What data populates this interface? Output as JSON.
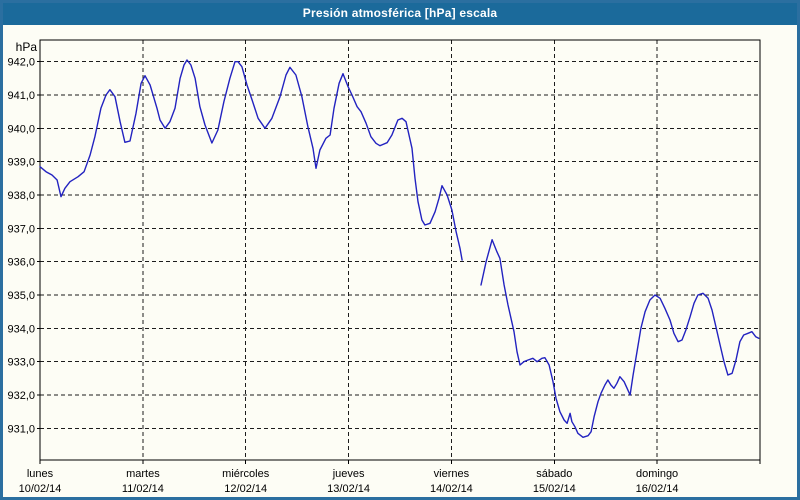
{
  "window": {
    "title": "Presión atmosférica [hPa] escala"
  },
  "colors": {
    "titlebar_bg": "#1b6a9b",
    "titlebar_text": "#ffffff",
    "window_border": "#2b6fa0",
    "content_bg": "#fdfdf5",
    "axis": "#000000",
    "grid": "#1c1c1c",
    "label_text": "#000000",
    "line": "#2323c0"
  },
  "chart_data": {
    "type": "line",
    "title": "Presión atmosférica [hPa] escala",
    "y_unit_label": "hPa",
    "y_ticks": [
      942,
      941,
      940,
      939,
      938,
      937,
      936,
      935,
      934,
      933,
      932,
      931
    ],
    "y_tick_labels": [
      "942,0",
      "941,0",
      "940,0",
      "939,0",
      "938,0",
      "937,0",
      "936,0",
      "935,0",
      "934,0",
      "933,0",
      "932,0",
      "931,0"
    ],
    "ylim": [
      930.05,
      942.65
    ],
    "x_range_hours": [
      0,
      168
    ],
    "grid": "dashed",
    "legend": "none",
    "x_days": [
      {
        "name": "lunes",
        "date": "10/02/14"
      },
      {
        "name": "martes",
        "date": "11/02/14"
      },
      {
        "name": "miércoles",
        "date": "12/02/14"
      },
      {
        "name": "jueves",
        "date": "13/02/14"
      },
      {
        "name": "viernes",
        "date": "14/02/14"
      },
      {
        "name": "sábado",
        "date": "15/02/14"
      },
      {
        "name": "domingo",
        "date": "16/02/14"
      }
    ],
    "series": [
      {
        "name": "presion_atmosferica_hPa",
        "color": "#2323c0",
        "segments": [
          [
            [
              0,
              938.85
            ],
            [
              1.4,
              938.7
            ],
            [
              2.8,
              938.6
            ],
            [
              4,
              938.45
            ],
            [
              4.9,
              937.95
            ],
            [
              5.8,
              938.2
            ],
            [
              7,
              938.4
            ],
            [
              8.9,
              938.55
            ],
            [
              10.3,
              938.7
            ],
            [
              11.7,
              939.2
            ],
            [
              12.8,
              939.75
            ],
            [
              14.2,
              940.6
            ],
            [
              15.4,
              941.0
            ],
            [
              16.3,
              941.16
            ],
            [
              17.5,
              940.95
            ],
            [
              18.7,
              940.2
            ],
            [
              19.8,
              939.58
            ],
            [
              21,
              939.62
            ],
            [
              22.4,
              940.45
            ],
            [
              23.6,
              941.35
            ],
            [
              24.5,
              941.58
            ],
            [
              25.7,
              941.3
            ],
            [
              27.3,
              940.6
            ],
            [
              28,
              940.25
            ],
            [
              29.2,
              940.0
            ],
            [
              30.3,
              940.2
            ],
            [
              31.5,
              940.6
            ],
            [
              32.7,
              941.5
            ],
            [
              33.6,
              941.9
            ],
            [
              34.3,
              942.05
            ],
            [
              35.2,
              941.9
            ],
            [
              36.2,
              941.5
            ],
            [
              37.3,
              940.65
            ],
            [
              38.5,
              940.1
            ],
            [
              40.1,
              939.56
            ],
            [
              41.5,
              939.95
            ],
            [
              42.9,
              940.8
            ],
            [
              44.3,
              941.5
            ],
            [
              45.5,
              942.0
            ],
            [
              46.2,
              942.0
            ],
            [
              47.1,
              941.85
            ],
            [
              48.3,
              941.3
            ],
            [
              49.5,
              940.85
            ],
            [
              50.9,
              940.3
            ],
            [
              52.5,
              940.0
            ],
            [
              54.1,
              940.3
            ],
            [
              56,
              940.95
            ],
            [
              57.4,
              941.6
            ],
            [
              58.3,
              941.83
            ],
            [
              59.7,
              941.6
            ],
            [
              61.1,
              940.95
            ],
            [
              62.5,
              940.05
            ],
            [
              63.7,
              939.4
            ],
            [
              64.4,
              938.8
            ],
            [
              65.3,
              939.35
            ],
            [
              66.7,
              939.7
            ],
            [
              67.7,
              939.8
            ],
            [
              68.6,
              940.6
            ],
            [
              69.8,
              941.35
            ],
            [
              70.7,
              941.64
            ],
            [
              71.9,
              941.25
            ],
            [
              72.8,
              941.0
            ],
            [
              74,
              940.65
            ],
            [
              74.9,
              940.5
            ],
            [
              76.1,
              940.15
            ],
            [
              77.2,
              939.75
            ],
            [
              78.4,
              939.55
            ],
            [
              79.3,
              939.48
            ],
            [
              81,
              939.57
            ],
            [
              82.1,
              939.8
            ],
            [
              83.5,
              940.25
            ],
            [
              84.5,
              940.3
            ],
            [
              85.4,
              940.2
            ],
            [
              86.8,
              939.4
            ],
            [
              87.5,
              938.5
            ],
            [
              88.2,
              937.8
            ],
            [
              89.1,
              937.25
            ],
            [
              89.8,
              937.1
            ],
            [
              91,
              937.15
            ],
            [
              92.2,
              937.5
            ],
            [
              93.1,
              937.9
            ],
            [
              93.8,
              938.28
            ],
            [
              95,
              938.0
            ],
            [
              96.1,
              937.55
            ],
            [
              97.1,
              936.9
            ],
            [
              98,
              936.4
            ],
            [
              98.5,
              936.05
            ]
          ],
          [
            [
              102.9,
              935.3
            ],
            [
              104.1,
              936.0
            ],
            [
              105.5,
              936.66
            ],
            [
              106.6,
              936.3
            ],
            [
              107.3,
              936.1
            ],
            [
              108.3,
              935.3
            ],
            [
              109.2,
              934.7
            ],
            [
              109.9,
              934.3
            ],
            [
              110.6,
              933.9
            ],
            [
              111.3,
              933.3
            ],
            [
              112,
              932.9
            ],
            [
              112.9,
              933.0
            ],
            [
              113.9,
              933.05
            ],
            [
              115,
              933.1
            ],
            [
              116,
              933.0
            ],
            [
              117.1,
              933.1
            ],
            [
              117.8,
              933.12
            ],
            [
              118.8,
              932.9
            ],
            [
              119.7,
              932.4
            ],
            [
              120.4,
              931.9
            ],
            [
              121.3,
              931.5
            ],
            [
              122.3,
              931.25
            ],
            [
              123,
              931.15
            ],
            [
              123.7,
              931.45
            ],
            [
              124.1,
              931.2
            ],
            [
              124.8,
              931.05
            ],
            [
              125.5,
              930.85
            ],
            [
              126.7,
              930.73
            ],
            [
              127.9,
              930.78
            ],
            [
              128.6,
              930.9
            ],
            [
              129.3,
              931.35
            ],
            [
              130.2,
              931.8
            ],
            [
              130.9,
              932.05
            ],
            [
              131.8,
              932.3
            ],
            [
              132.5,
              932.45
            ],
            [
              133.2,
              932.3
            ],
            [
              133.9,
              932.2
            ],
            [
              134.6,
              932.35
            ],
            [
              135.3,
              932.55
            ],
            [
              136.3,
              932.4
            ],
            [
              137,
              932.2
            ],
            [
              137.7,
              932.0
            ],
            [
              138.4,
              932.6
            ],
            [
              139.3,
              933.3
            ],
            [
              140.2,
              934.0
            ],
            [
              141.2,
              934.5
            ],
            [
              142.3,
              934.85
            ],
            [
              143.5,
              935.0
            ],
            [
              144.7,
              934.9
            ],
            [
              145.8,
              934.6
            ],
            [
              147,
              934.25
            ],
            [
              147.9,
              933.85
            ],
            [
              148.9,
              933.6
            ],
            [
              149.8,
              933.65
            ],
            [
              150.7,
              933.95
            ],
            [
              151.7,
              934.35
            ],
            [
              152.6,
              934.75
            ],
            [
              153.5,
              935.0
            ],
            [
              154.7,
              935.05
            ],
            [
              155.9,
              934.9
            ],
            [
              156.8,
              934.55
            ],
            [
              157.7,
              934.05
            ],
            [
              158.7,
              933.5
            ],
            [
              159.6,
              933.0
            ],
            [
              160.5,
              932.6
            ],
            [
              161.5,
              932.65
            ],
            [
              162.4,
              933.05
            ],
            [
              163.3,
              933.6
            ],
            [
              164.2,
              933.8
            ],
            [
              165.2,
              933.85
            ],
            [
              166.1,
              933.9
            ],
            [
              167,
              933.75
            ],
            [
              167.7,
              933.7
            ]
          ]
        ]
      }
    ]
  }
}
